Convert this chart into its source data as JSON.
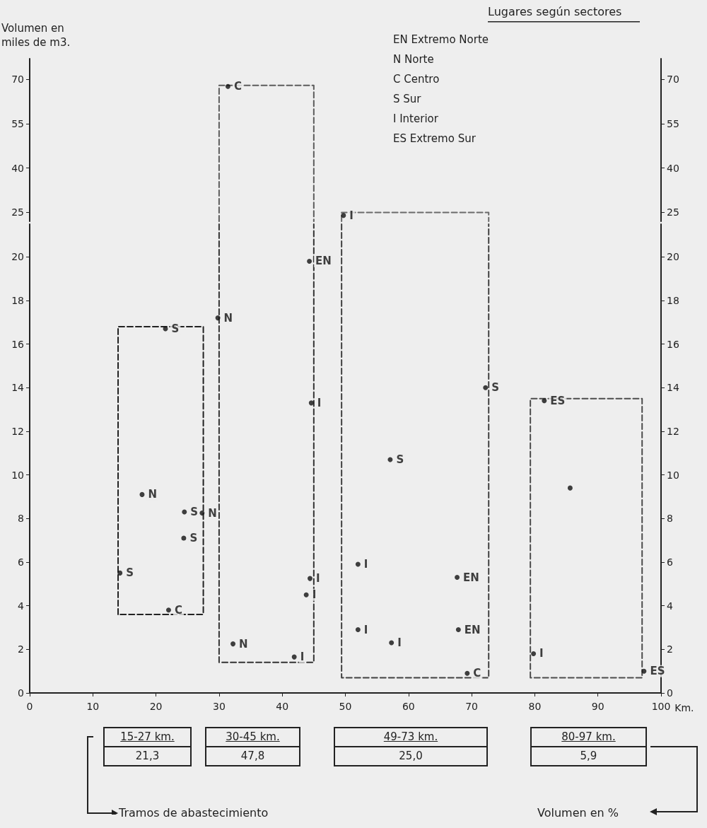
{
  "chart_data": [
    {
      "type": "scatter",
      "ylabel": "Volumen en miles de m3.",
      "xlim": [
        0,
        100
      ],
      "ylim": [
        22,
        77
      ],
      "yticks": [
        25,
        40,
        55,
        70
      ],
      "y2lim": [
        22,
        77
      ],
      "y2ticks": [
        25,
        40,
        55,
        70
      ],
      "tick_labels": "y",
      "marker": "circle",
      "annotations": [
        "Lugares según sectores",
        "EN Extremo Norte",
        "N Norte",
        "C Centro",
        "S Sur",
        "I Interior",
        "ES Extremo Sur"
      ],
      "series": [
        {
          "color": "#111111",
          "x": [
            31.4,
            49.7
          ],
          "values": [
            67.6,
            24
          ],
          "value_labels": [
            "C",
            "I"
          ]
        },
        {
          "type": "line",
          "marker": "none",
          "line_style": "dashed",
          "color": "#5c5c5c",
          "x": [
            30,
            30,
            45,
            45
          ],
          "values": [
            22,
            68,
            68,
            22
          ]
        },
        {
          "type": "line",
          "marker": "none",
          "line_style": "dashed",
          "color": "#6a6a6a",
          "x": [
            49.4,
            49.4,
            72.7,
            72.7
          ],
          "values": [
            22,
            25,
            25,
            22
          ]
        }
      ]
    },
    {
      "type": "scatter",
      "xlabel": "Km.",
      "xlim": [
        0,
        100
      ],
      "xticks": [
        0,
        10,
        20,
        30,
        40,
        50,
        60,
        70,
        80,
        90,
        100
      ],
      "ylim": [
        0,
        21.5
      ],
      "yticks": [
        0,
        2,
        4,
        6,
        8,
        10,
        12,
        14,
        16,
        18,
        20
      ],
      "y2lim": [
        0,
        21.5
      ],
      "y2ticks": [
        0,
        2,
        4,
        6,
        8,
        10,
        12,
        14,
        16,
        18,
        20
      ],
      "marker": "circle",
      "annotations": [
        "15-27 km.",
        "21,3",
        "30-45 km.",
        "47,8",
        "49-73 km.",
        "25,0",
        "80-97 km.",
        "5,9",
        "Tramos de abastecimiento",
        "Volumen en %"
      ],
      "series": [
        {
          "color": "#111111",
          "x": [
            14.3,
            17.8,
            24.5,
            24.4,
            27.3,
            22,
            21.5,
            29.8,
            32.2,
            41.9,
            44.4,
            43.8,
            44.6,
            44.3,
            72.2,
            57.1,
            52,
            52,
            57.3,
            67.7,
            67.9,
            69.3,
            81.5,
            79.8,
            97.3,
            85.6
          ],
          "values": [
            5.5,
            9.1,
            8.3,
            7.1,
            8.25,
            3.8,
            16.7,
            17.2,
            2.25,
            1.65,
            5.25,
            4.5,
            13.3,
            19.8,
            14,
            10.7,
            5.9,
            2.9,
            2.3,
            5.3,
            2.9,
            0.9,
            13.4,
            1.8,
            1,
            9.4
          ],
          "value_labels": [
            "S",
            "N",
            "S",
            "S",
            "N",
            "C",
            "S",
            "N",
            "N",
            "I",
            "I",
            "I",
            "I",
            "EN",
            "S",
            "S",
            "I",
            "I",
            "I",
            "EN",
            "EN",
            "C",
            "ES",
            "I",
            "ES",
            null
          ]
        },
        {
          "type": "line",
          "marker": "none",
          "line_style": "dashed",
          "color": "#222222",
          "x": [
            14,
            14,
            27.5,
            27.5,
            14.1
          ],
          "values": [
            3.6,
            16.8,
            16.8,
            3.6,
            3.6
          ]
        },
        {
          "type": "line",
          "marker": "none",
          "line_style": "dashed",
          "color": "#333333",
          "x": [
            30,
            30,
            45,
            45
          ],
          "values": [
            21.5,
            1.4,
            1.4,
            21.5
          ]
        },
        {
          "type": "line",
          "marker": "none",
          "line_style": "dashed",
          "color": "#404040",
          "x": [
            49.4,
            49.4,
            72.7,
            72.7
          ],
          "values": [
            21.5,
            0.7,
            0.7,
            21.5
          ]
        },
        {
          "type": "line",
          "marker": "none",
          "line_style": "dashed",
          "color": "#4c4c4c",
          "x": [
            79.3,
            79.3,
            97,
            97,
            79.4
          ],
          "values": [
            0.7,
            13.5,
            13.5,
            0.7,
            0.7
          ]
        }
      ]
    }
  ]
}
